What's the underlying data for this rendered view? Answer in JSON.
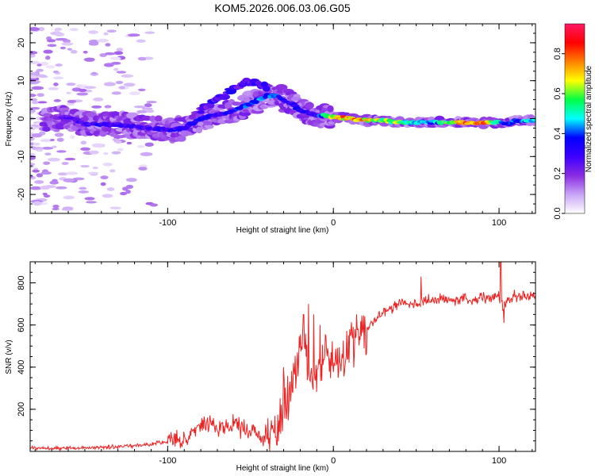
{
  "title": "KOM5.2026.006.03.06.G05",
  "chart_data": [
    {
      "type": "heatmap",
      "title": "KOM5.2026.006.03.06.G05",
      "xlabel": "Height of straight line (km)",
      "ylabel": "Frequency (Hz)",
      "xlim": [
        -183,
        122
      ],
      "ylim": [
        -25,
        25
      ],
      "xticks": [
        -100,
        0,
        100
      ],
      "yticks": [
        -20,
        -10,
        0,
        10,
        20
      ],
      "colorbar": {
        "label": "Normalized spectral amplitude",
        "range": [
          0,
          0.95
        ],
        "ticks": [
          0.0,
          0.2,
          0.4,
          0.6,
          0.8
        ],
        "tick_labels": [
          "0.0",
          "0.2",
          "0.4",
          "0.6",
          "0.8"
        ],
        "colormap": [
          "#ffffff",
          "#c9a4f6",
          "#8a2be2",
          "#3d00ff",
          "#0000ff",
          "#00ffff",
          "#00ff44",
          "#ffff00",
          "#ff8000",
          "#ff0000",
          "#ff1a66"
        ]
      },
      "ridge": {
        "x": [
          -175,
          -160,
          -150,
          -140,
          -130,
          -120,
          -110,
          -100,
          -90,
          -80,
          -70,
          -60,
          -50,
          -40,
          -35,
          -30,
          -25,
          -20,
          -10,
          0,
          10,
          20,
          30,
          40,
          50,
          60,
          70,
          80,
          90,
          100,
          105,
          110,
          115,
          122
        ],
        "y": [
          0,
          0.5,
          -1.5,
          -1.5,
          -1.5,
          -2,
          -2.5,
          -3,
          -2.5,
          0,
          1,
          2,
          4,
          6,
          6,
          5,
          4,
          2,
          1,
          0.5,
          0,
          -0.5,
          -0.5,
          -1,
          -1,
          -1,
          -1,
          -1,
          -1,
          -1,
          -1.5,
          -0.5,
          -0.5,
          -0.5
        ],
        "amplitude": [
          0.15,
          0.25,
          0.3,
          0.32,
          0.3,
          0.3,
          0.3,
          0.3,
          0.3,
          0.35,
          0.3,
          0.35,
          0.4,
          0.4,
          0.4,
          0.35,
          0.3,
          0.35,
          0.3,
          0.7,
          0.75,
          0.7,
          0.6,
          0.6,
          0.5,
          0.4,
          0.6,
          0.8,
          0.8,
          0.5,
          0.35,
          0.4,
          0.45,
          0.55
        ]
      },
      "upper_branch": {
        "x": [
          -80,
          -70,
          -60,
          -50,
          -40
        ],
        "y": [
          2,
          5,
          8,
          10,
          8
        ]
      }
    },
    {
      "type": "line",
      "xlabel": "Height of straight line (km)",
      "ylabel": "SNR (v/v)",
      "xlim": [
        -183,
        122
      ],
      "ylim": [
        0,
        900
      ],
      "xticks": [
        -100,
        0,
        100
      ],
      "yticks": [
        200,
        400,
        600,
        800
      ],
      "series": [
        {
          "name": "SNR",
          "color": "#ee2222",
          "x": [
            -183,
            -160,
            -140,
            -120,
            -110,
            -100,
            -90,
            -80,
            -75,
            -70,
            -60,
            -50,
            -40,
            -35,
            -32,
            -30,
            -28,
            -25,
            -20,
            -17,
            -15,
            -10,
            -5,
            0,
            5,
            10,
            15,
            20,
            25,
            30,
            40,
            50,
            60,
            70,
            80,
            90,
            100,
            102,
            105,
            110,
            115,
            122
          ],
          "y": [
            15,
            15,
            20,
            25,
            35,
            45,
            60,
            120,
            140,
            110,
            130,
            100,
            70,
            80,
            170,
            220,
            240,
            300,
            480,
            540,
            350,
            380,
            430,
            480,
            430,
            500,
            540,
            590,
            620,
            660,
            700,
            710,
            715,
            720,
            725,
            725,
            730,
            690,
            720,
            740,
            740,
            740
          ],
          "spikes": [
            {
              "x": -30,
              "y": 400
            },
            {
              "x": -24,
              "y": 420
            },
            {
              "x": -20,
              "y": 555
            },
            {
              "x": -18,
              "y": 650
            },
            {
              "x": -15,
              "y": 700
            },
            {
              "x": -12,
              "y": 650
            },
            {
              "x": -8,
              "y": 600
            },
            {
              "x": 53,
              "y": 830
            },
            {
              "x": 101,
              "y": 910
            },
            {
              "x": 103,
              "y": 610
            }
          ]
        }
      ]
    }
  ]
}
